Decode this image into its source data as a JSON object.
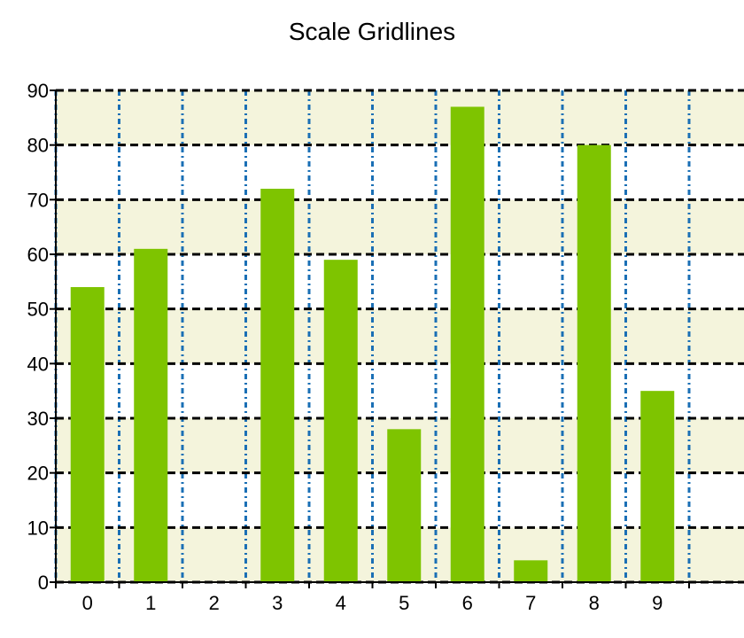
{
  "chart_data": {
    "type": "bar",
    "title": "Scale Gridlines",
    "xlabel": "",
    "ylabel": "",
    "categories": [
      "0",
      "1",
      "2",
      "3",
      "4",
      "5",
      "6",
      "7",
      "8",
      "9"
    ],
    "values": [
      54,
      61,
      0,
      72,
      59,
      28,
      87,
      4,
      80,
      35
    ],
    "ylim": [
      0,
      90
    ],
    "yticks": [
      "0",
      "10",
      "20",
      "30",
      "40",
      "50",
      "60",
      "70",
      "80",
      "90"
    ],
    "grid": true,
    "legend": "none",
    "colors": {
      "bar": "#7ec400",
      "band": "#f4f4dc",
      "y_grid": "#000000",
      "x_grid": "#1a6fb5",
      "axis": "#000000"
    }
  }
}
